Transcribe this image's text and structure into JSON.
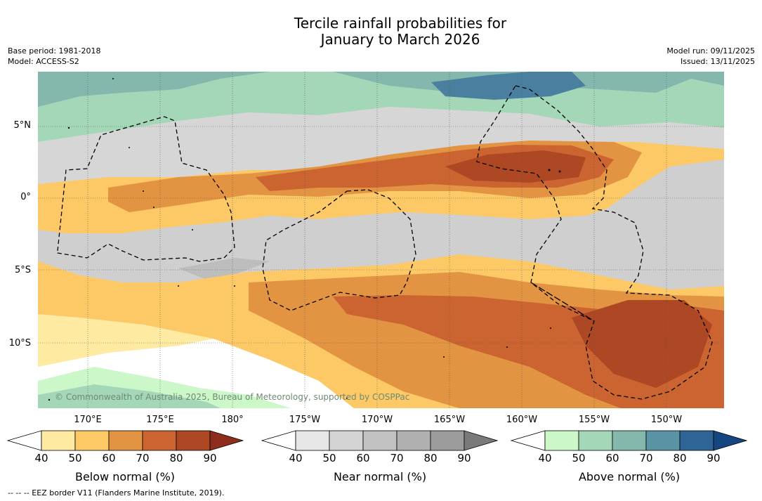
{
  "title_line1": "Tercile rainfall probabilities for",
  "title_line2": "January to March 2026",
  "base_period": "Base period: 1981-2018",
  "model": "Model: ACCESS-S2",
  "model_run": "Model run: 09/11/2025",
  "issued": "Issued: 13/11/2025",
  "lat_labels": [
    "5°N",
    "0°",
    "5°S",
    "10°S"
  ],
  "lon_labels": [
    "170°E",
    "175°E",
    "180°",
    "175°W",
    "170°W",
    "165°W",
    "160°W",
    "155°W",
    "150°W"
  ],
  "copyright": "© Commonwealth of Australia 2025, Bureau of Meteorology, supported by COSPPac",
  "colorbars": [
    {
      "title": "Below normal (%)",
      "ticks": [
        "40",
        "50",
        "60",
        "70",
        "80",
        "90"
      ],
      "colors": [
        "#ffffff",
        "#feeaa0",
        "#fdc966",
        "#e39443",
        "#cb6430",
        "#ad4724",
        "#8e2d1c"
      ]
    },
    {
      "title": "Near normal (%)",
      "ticks": [
        "40",
        "50",
        "60",
        "70",
        "80",
        "90"
      ],
      "colors": [
        "#ffffff",
        "#e6e6e6",
        "#d4d4d4",
        "#c2c2c2",
        "#b0b0b0",
        "#9c9c9c",
        "#7a7a7a"
      ]
    },
    {
      "title": "Above normal (%)",
      "ticks": [
        "40",
        "50",
        "60",
        "70",
        "80",
        "90"
      ],
      "colors": [
        "#ffffff",
        "#cbf7c9",
        "#a4d6b8",
        "#84b8ad",
        "#5a93a3",
        "#2e6496",
        "#14477f"
      ]
    }
  ],
  "footnote": "--  --  -- EEZ border V11 (Flanders Marine Institute, 2019)."
}
